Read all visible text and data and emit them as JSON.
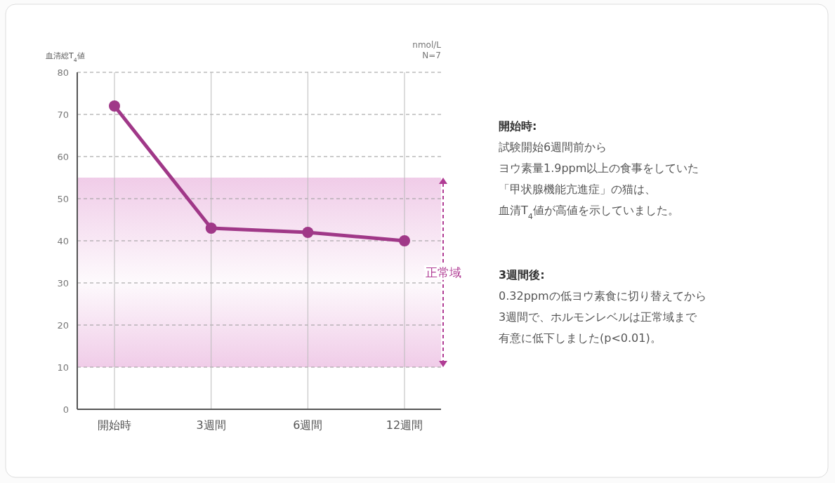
{
  "chart_data": {
    "type": "line",
    "ylabel": "血清総T$_{4}$値",
    "categories": [
      "開始時",
      "3週間",
      "6週間",
      "12週間"
    ],
    "series": [
      {
        "color": "#a03888",
        "values": [
          72,
          43,
          42,
          40
        ]
      }
    ],
    "ylim": [
      0,
      80
    ],
    "yticks": [
      0,
      10,
      20,
      30,
      40,
      50,
      60,
      70,
      80
    ],
    "grid": true,
    "marker": "circle",
    "line_style": "solid",
    "bands": [
      {
        "axis": "y",
        "from": 10,
        "to": 55,
        "label": "正常域",
        "color": "#f0cce8"
      }
    ],
    "annotations": [
      "nmol/L",
      "N=7",
      "開始時:",
      "試験開始6週間前から",
      "ヨウ素量1.9ppm以上の食事をしていた",
      "「甲状腺機能亢進症」の猫は、",
      "血清T$_{4}$値が高値を示していました。",
      "3週間後:",
      "0.32ppmの低ヨウ素食に切り替えてから",
      "3週間で、ホルモンレベルは正常域まで",
      "有意に低下しました(p<0.01)。"
    ]
  }
}
